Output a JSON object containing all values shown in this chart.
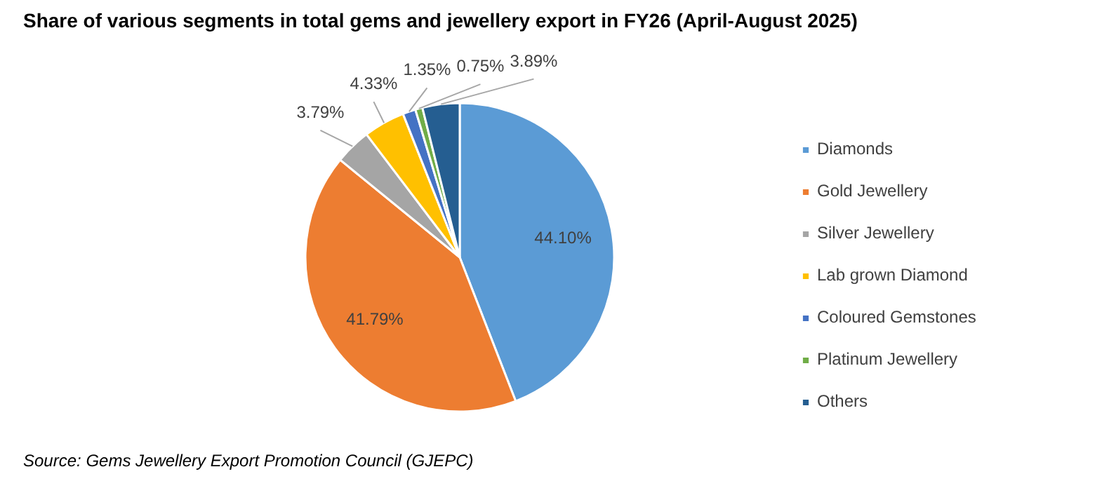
{
  "chart_data": {
    "type": "pie",
    "title": "Share of various segments in total gems and jewellery export in FY26 (April-August 2025)",
    "categories": [
      "Diamonds",
      "Gold Jewellery",
      "Silver Jewellery",
      "Lab grown Diamond",
      "Coloured Gemstones",
      "Platinum Jewellery",
      "Others"
    ],
    "values": [
      44.1,
      41.79,
      3.79,
      4.33,
      1.35,
      0.75,
      3.89
    ],
    "value_labels": [
      "44.10%",
      "41.79%",
      "3.79%",
      "4.33%",
      "1.35%",
      "0.75%",
      "3.89%"
    ],
    "colors": [
      "#5b9bd5",
      "#ed7d31",
      "#a5a5a5",
      "#ffc000",
      "#4472c4",
      "#70ad47",
      "#255e91"
    ],
    "legend": "right",
    "annotations": [
      "Source: Gems Jewellery Export Promotion Council (GJEPC)"
    ]
  }
}
